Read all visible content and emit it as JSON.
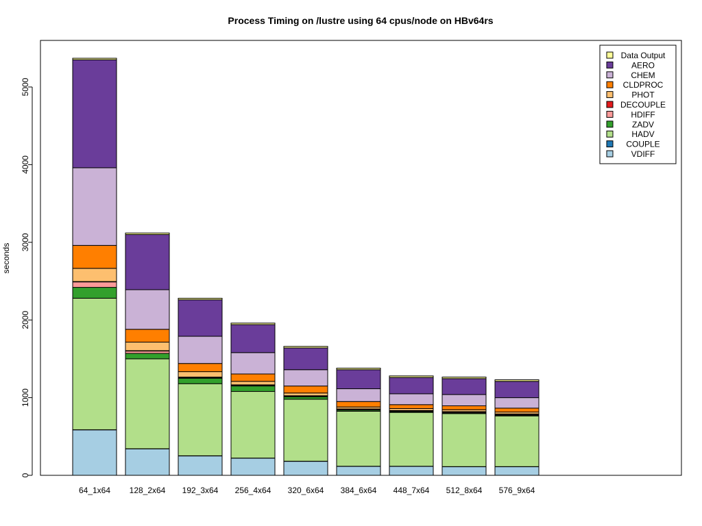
{
  "chart_data": {
    "type": "bar",
    "stacked": true,
    "title": "Process Timing on /lustre using 64 cpus/node on HBv64rs",
    "xlabel": "",
    "ylabel": "seconds",
    "ylim": [
      0,
      5450
    ],
    "yticks": [
      0,
      1000,
      2000,
      3000,
      4000,
      5000
    ],
    "grid": false,
    "legend_position": "top-right",
    "categories": [
      "64_1x64",
      "128_2x64",
      "192_3x64",
      "256_4x64",
      "320_6x64",
      "384_6x64",
      "448_7x64",
      "512_8x64",
      "576_9x64"
    ],
    "series": [
      {
        "name": "VDIFF",
        "color": "#a6cee3",
        "values": [
          585,
          340,
          250,
          220,
          180,
          115,
          115,
          110,
          110
        ]
      },
      {
        "name": "COUPLE",
        "color": "#1f78b4",
        "values": [
          2,
          2,
          2,
          2,
          2,
          2,
          2,
          2,
          2
        ]
      },
      {
        "name": "HADV",
        "color": "#b2df8a",
        "values": [
          1693,
          1158,
          928,
          858,
          798,
          708,
          693,
          683,
          653
        ]
      },
      {
        "name": "ZADV",
        "color": "#33a02c",
        "values": [
          140,
          70,
          70,
          70,
          30,
          15,
          10,
          10,
          10
        ]
      },
      {
        "name": "HDIFF",
        "color": "#fb9a99",
        "values": [
          70,
          30,
          10,
          10,
          10,
          10,
          10,
          10,
          10
        ]
      },
      {
        "name": "DECOUPLE",
        "color": "#e31a1c",
        "values": [
          5,
          5,
          5,
          5,
          5,
          5,
          5,
          5,
          5
        ]
      },
      {
        "name": "PHOT",
        "color": "#fdbf6f",
        "values": [
          170,
          110,
          70,
          45,
          35,
          25,
          25,
          25,
          25
        ]
      },
      {
        "name": "CLDPROC",
        "color": "#ff7f00",
        "values": [
          295,
          165,
          105,
          95,
          90,
          70,
          50,
          50,
          50
        ]
      },
      {
        "name": "CHEM",
        "color": "#cab2d6",
        "values": [
          1000,
          510,
          350,
          275,
          210,
          165,
          140,
          145,
          135
        ]
      },
      {
        "name": "AERO",
        "color": "#6a3d9a",
        "values": [
          1390,
          710,
          470,
          360,
          280,
          245,
          210,
          205,
          210
        ]
      },
      {
        "name": "Data Output",
        "color": "#ffff99",
        "values": [
          20,
          20,
          20,
          20,
          20,
          20,
          20,
          20,
          20
        ]
      }
    ]
  }
}
